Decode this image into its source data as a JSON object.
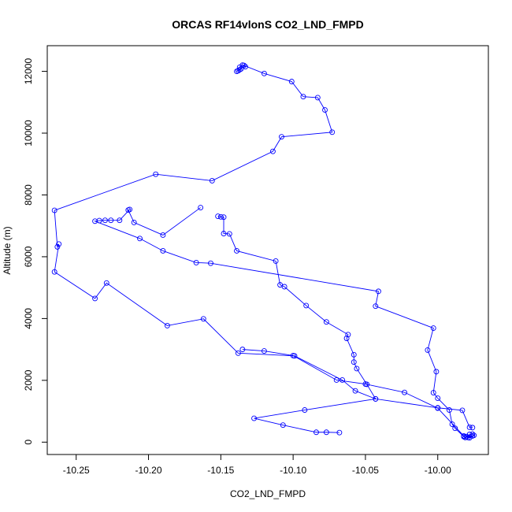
{
  "chart_data": {
    "type": "line",
    "title": "ORCAS RF14vlonS CO2_LND_FMPD",
    "xlabel": "CO2_LND_FMPD",
    "ylabel": "Altitude (m)",
    "xlim": [
      -10.27,
      -9.965
    ],
    "ylim": [
      -400,
      12830
    ],
    "xticks": [
      -10.25,
      -10.2,
      -10.15,
      -10.1,
      -10.05,
      -10.0
    ],
    "xtick_labels": [
      "-10.25",
      "-10.20",
      "-10.15",
      "-10.10",
      "-10.05",
      "-10.00"
    ],
    "yticks": [
      0,
      2000,
      4000,
      6000,
      8000,
      10000,
      12000
    ],
    "ytick_labels": [
      "0",
      "2000",
      "4000",
      "6000",
      "8000",
      "10000",
      "12000"
    ],
    "grid": false,
    "legend": "none",
    "line_color": "#0000ff",
    "marker": "open-circle",
    "series": [
      {
        "x": [
          -10.133,
          -10.135,
          -10.137,
          -10.136,
          -10.138,
          -10.139,
          -10.137,
          -10.134,
          -10.12,
          -10.101,
          -10.093,
          -10.083,
          -10.078,
          -10.073,
          -10.108,
          -10.114,
          -10.156,
          -10.195,
          -10.265,
          -10.263,
          -10.262,
          -10.265,
          -10.237,
          -10.229,
          -10.187,
          -10.162,
          -10.138,
          -10.099,
          -10.066,
          -10.057,
          -10.043,
          -10.092,
          -10.127,
          -10.107,
          -10.084,
          -10.077,
          -10.068
        ],
        "y": [
          12150,
          12200,
          12130,
          12080,
          12020,
          12000,
          12050,
          12190,
          11930,
          11670,
          11180,
          11150,
          10750,
          10030,
          9880,
          9410,
          8460,
          8670,
          7500,
          6320,
          6410,
          5510,
          4650,
          5150,
          3770,
          3990,
          2880,
          2790,
          2010,
          1660,
          1400,
          1040,
          770,
          550,
          320,
          320,
          310
        ]
      },
      {
        "x": [
          -10.164,
          -10.19,
          -10.21,
          -10.214,
          -10.213,
          -10.22,
          -10.226,
          -10.23,
          -10.234,
          -10.237,
          -10.206,
          -10.19,
          -10.167,
          -10.157,
          -10.041,
          -10.043,
          -10.003,
          -10.007,
          -10.001,
          -10.003,
          -10.0,
          -9.992,
          -9.99,
          -9.988,
          -9.982,
          -9.981,
          -9.976,
          -9.979,
          -9.978,
          -9.976,
          -9.975,
          -9.978,
          -9.98,
          -9.982,
          -10.0,
          -10.023,
          -10.05,
          -10.07,
          -10.1,
          -10.12,
          -10.135
        ],
        "y": [
          7590,
          6700,
          7110,
          7510,
          7530,
          7180,
          7180,
          7180,
          7170,
          7150,
          6590,
          6190,
          5810,
          5790,
          4880,
          4400,
          3690,
          2980,
          2280,
          1600,
          1420,
          1040,
          580,
          450,
          180,
          150,
          200,
          150,
          250,
          260,
          220,
          140,
          180,
          200,
          1100,
          1610,
          1880,
          2010,
          2800,
          2950,
          3000
        ]
      },
      {
        "x": [
          -10.152,
          -10.15,
          -10.148,
          -10.148,
          -10.144,
          -10.139,
          -10.112,
          -10.109,
          -10.106,
          -10.091,
          -10.077,
          -10.062,
          -10.063,
          -10.058,
          -10.058,
          -10.056,
          -10.049,
          -10.043,
          -10.0,
          -9.983,
          -9.978,
          -9.976
        ],
        "y": [
          7310,
          7290,
          7280,
          6750,
          6740,
          6190,
          5860,
          5090,
          5030,
          4420,
          3890,
          3480,
          3360,
          2830,
          2590,
          2380,
          1870,
          1400,
          1110,
          1030,
          480,
          470
        ]
      }
    ]
  }
}
